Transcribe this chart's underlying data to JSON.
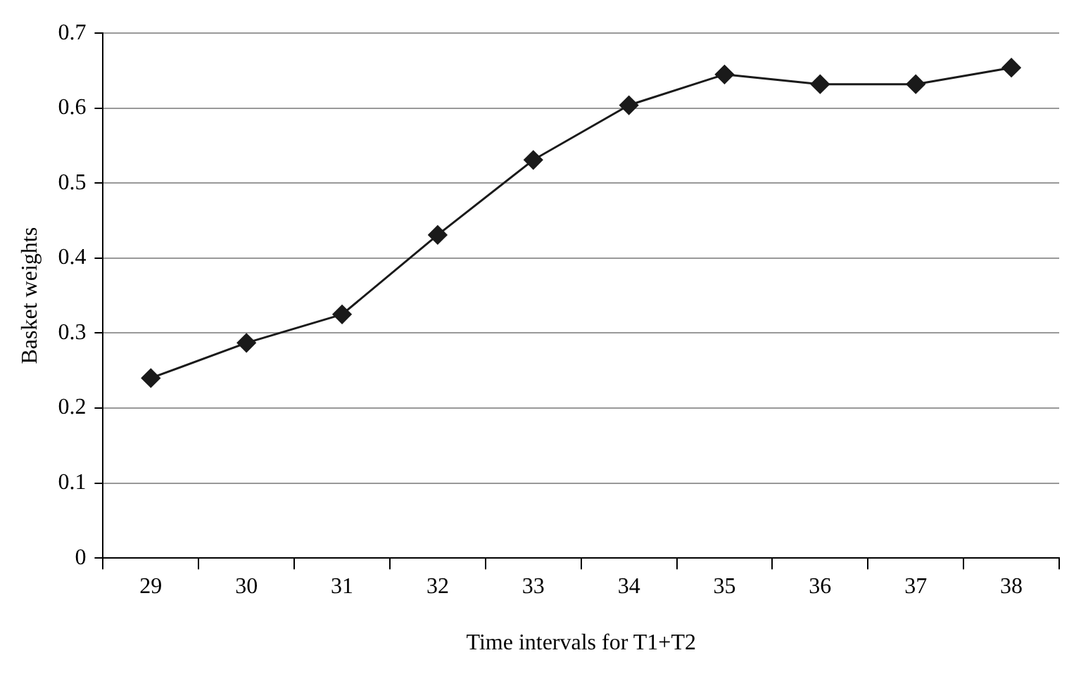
{
  "chart_data": {
    "type": "line",
    "xlabel": "Time intervals for T1+T2",
    "ylabel": "Basket weights",
    "categories": [
      "29",
      "30",
      "31",
      "32",
      "33",
      "34",
      "35",
      "36",
      "37",
      "38"
    ],
    "series": [
      {
        "color": "#1a1a1a",
        "values": [
          0.24,
          0.287,
          0.325,
          0.431,
          0.531,
          0.604,
          0.645,
          0.632,
          0.632,
          0.654
        ]
      }
    ],
    "ylim": [
      0,
      0.7
    ],
    "yticks": [
      0,
      0.1,
      0.2,
      0.3,
      0.4,
      0.5,
      0.6,
      0.7
    ],
    "grid": "y",
    "legend": false,
    "marker": "diamond",
    "line_style": "solid"
  }
}
